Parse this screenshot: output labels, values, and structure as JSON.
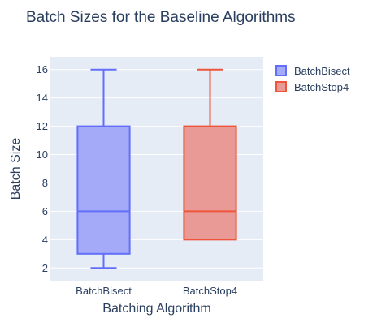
{
  "chart_data": {
    "type": "box",
    "title": "Batch Sizes for the Baseline Algorithms",
    "xlabel": "Batching Algorithm",
    "ylabel": "Batch Size",
    "ylim": [
      1.1,
      16.9
    ],
    "yticks": [
      2,
      4,
      6,
      8,
      10,
      12,
      14,
      16
    ],
    "categories": [
      "BatchBisect",
      "BatchStop4"
    ],
    "series": [
      {
        "name": "BatchBisect",
        "color": "#636efa",
        "fill": "#a4aaf7",
        "min": 2,
        "q1": 3,
        "median": 6,
        "q3": 12,
        "max": 16
      },
      {
        "name": "BatchStop4",
        "color": "#ef553b",
        "fill": "#e99a96",
        "min": 4,
        "q1": 4,
        "median": 6,
        "q3": 12,
        "max": 16
      }
    ],
    "legend": "top-right",
    "grid": true,
    "plot_bgcolor": "#e5ecf6"
  }
}
